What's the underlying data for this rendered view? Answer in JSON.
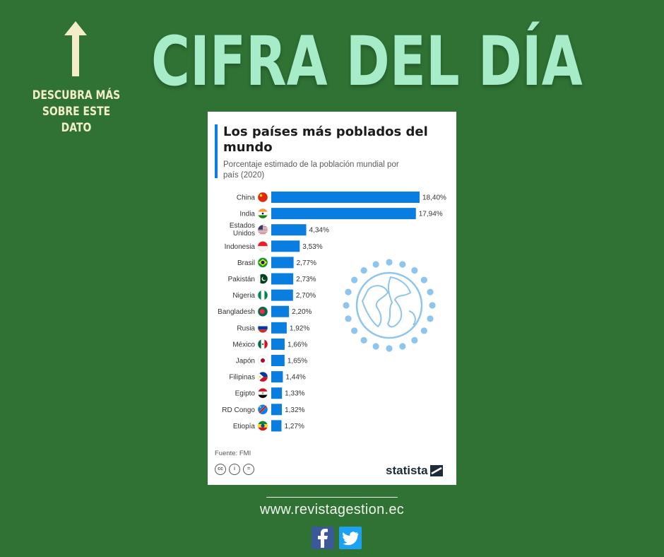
{
  "header": {
    "headline": "CIFRA DEL DÍA",
    "side_note": "DESCUBRA MÁS SOBRE ESTE DATO"
  },
  "card": {
    "title": "Los países más poblados del mundo",
    "subtitle": "Porcentaje estimado de la población mundial por país (2020)",
    "source": "Fuente: FMI",
    "brand": "statista"
  },
  "chart_data": {
    "type": "bar",
    "orientation": "horizontal",
    "title": "Los países más poblados del mundo",
    "subtitle": "Porcentaje estimado de la población mundial por país (2020)",
    "categories": [
      "China",
      "India",
      "Estados Unidos",
      "Indonesia",
      "Brasil",
      "Pakistán",
      "Nigeria",
      "Bangladesh",
      "Rusia",
      "México",
      "Japón",
      "Filipinas",
      "Egipto",
      "RD Congo",
      "Etiopía"
    ],
    "values": [
      18.4,
      17.94,
      4.34,
      3.53,
      2.77,
      2.73,
      2.7,
      2.2,
      1.92,
      1.66,
      1.65,
      1.44,
      1.33,
      1.32,
      1.27
    ],
    "value_labels": [
      "18,40%",
      "17,94%",
      "4,34%",
      "3,53%",
      "2,77%",
      "2,73%",
      "2,70%",
      "2,20%",
      "1,92%",
      "1,66%",
      "1,65%",
      "1,44%",
      "1,33%",
      "1,32%",
      "1,27%"
    ],
    "flag_icons": [
      "china-flag-icon",
      "india-flag-icon",
      "usa-flag-icon",
      "indonesia-flag-icon",
      "brazil-flag-icon",
      "pakistan-flag-icon",
      "nigeria-flag-icon",
      "bangladesh-flag-icon",
      "russia-flag-icon",
      "mexico-flag-icon",
      "japan-flag-icon",
      "philippines-flag-icon",
      "egypt-flag-icon",
      "drc-flag-icon",
      "ethiopia-flag-icon"
    ],
    "bar_color": "#0a7de0",
    "xlabel": "",
    "ylabel": "",
    "xlim": [
      0,
      18.4
    ],
    "grid": false,
    "legend": "none"
  },
  "footer": {
    "url": "www.revistagestion.ec",
    "social_icons": [
      "facebook-icon",
      "twitter-icon"
    ]
  },
  "colors": {
    "background": "#2f7234",
    "headline": "#a6ecc9",
    "side_note": "#f3eec9",
    "bar": "#0a7de0",
    "globe": "#8ec5ee"
  }
}
